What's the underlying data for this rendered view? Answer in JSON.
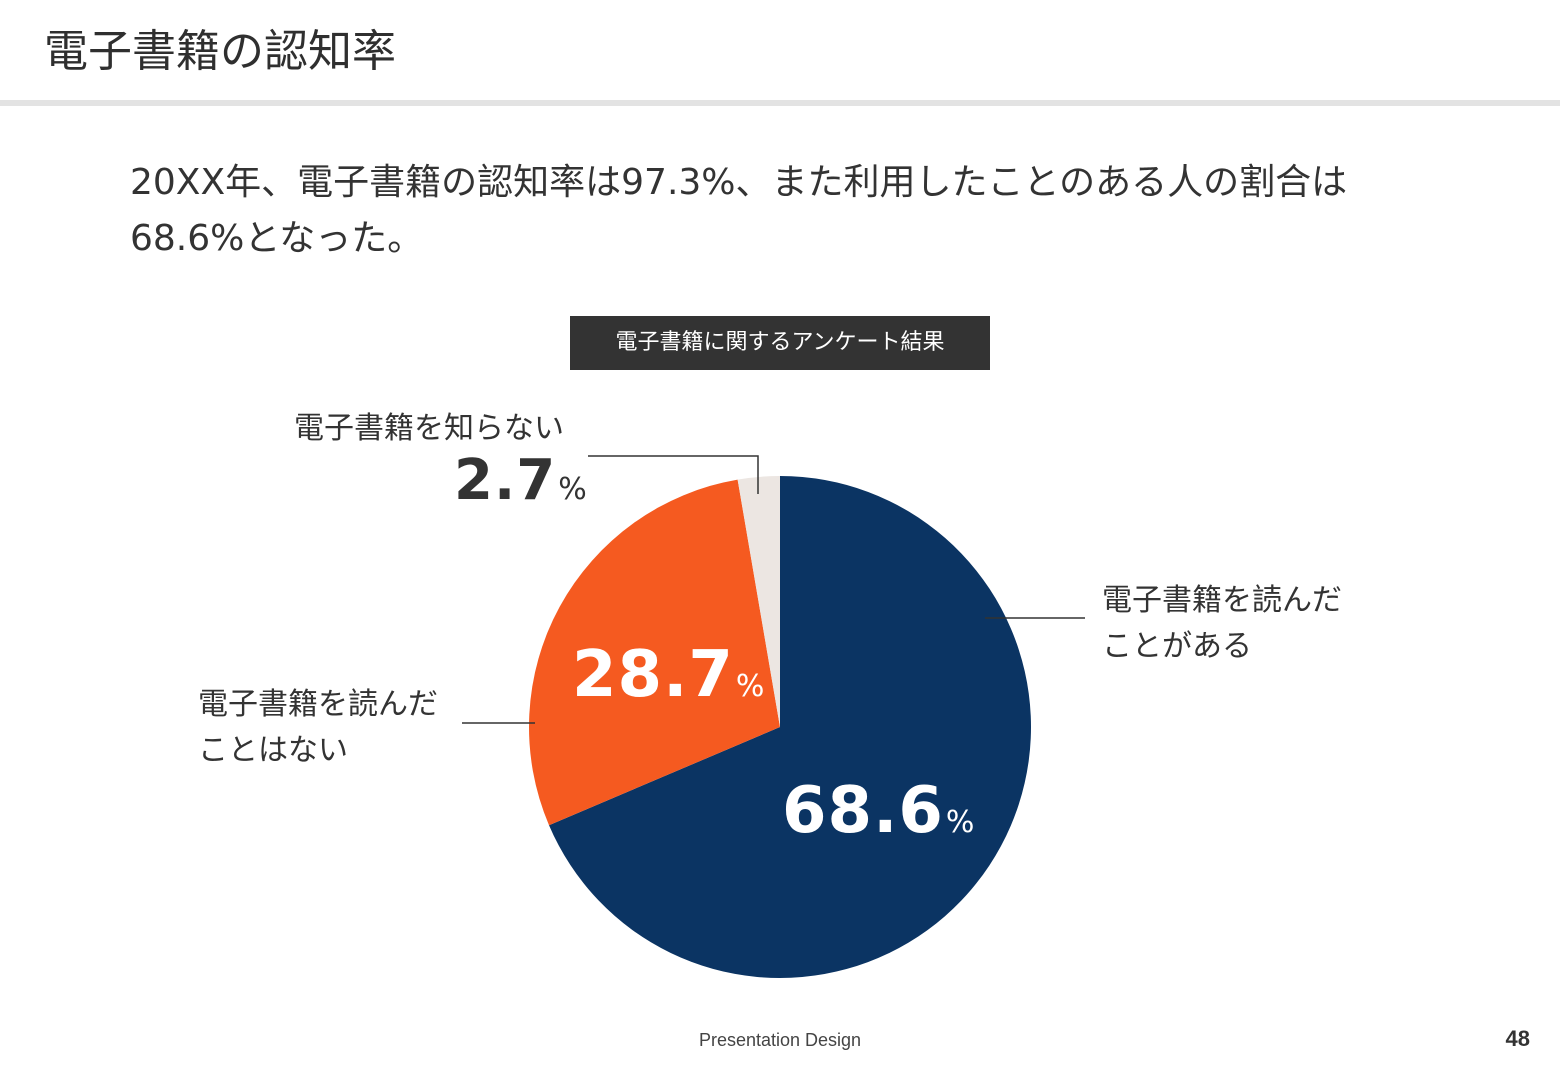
{
  "slide": {
    "title": "電子書籍の認知率",
    "lead": "20XX年、電子書籍の認知率は97.3%、また利用したことのある人の割合は68.6%となった。",
    "footer": "Presentation Design",
    "page_number": "48"
  },
  "chart_data": {
    "type": "pie",
    "title": "電子書籍に関するアンケート結果",
    "unit": "%",
    "slices": [
      {
        "label": "電子書籍を読んだことがある",
        "label_lines": [
          "電子書籍を読んだ",
          "ことがある"
        ],
        "value": 68.6,
        "value_text": "68.6",
        "color": "#0b3463"
      },
      {
        "label": "電子書籍を読んだことはない",
        "label_lines": [
          "電子書籍を読んだ",
          "ことはない"
        ],
        "value": 28.7,
        "value_text": "28.7",
        "color": "#f55a20"
      },
      {
        "label": "電子書籍を知らない",
        "label_lines": [
          "電子書籍を知らない"
        ],
        "value": 2.7,
        "value_text": "2.7",
        "color": "#ece6e2"
      }
    ]
  }
}
